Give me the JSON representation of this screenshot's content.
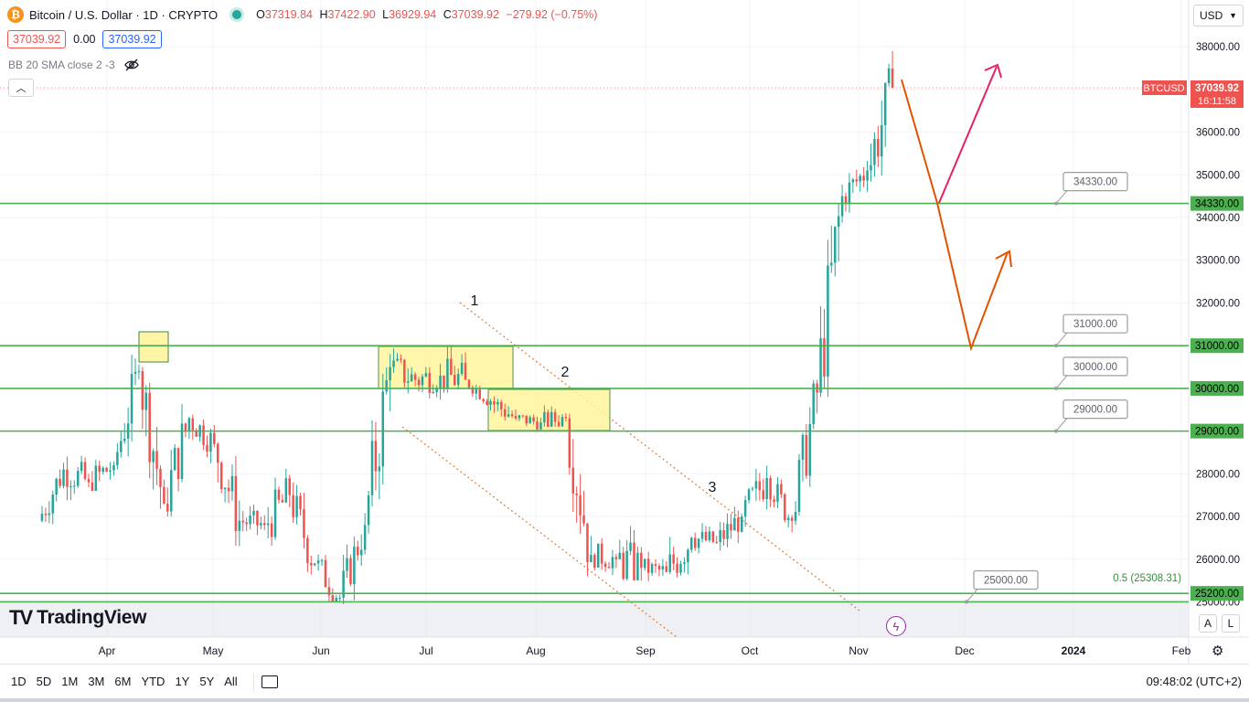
{
  "symbol": {
    "name": "Bitcoin / U.S. Dollar · 1D · CRYPTO",
    "icon": "bitcoin-icon",
    "ohlc": [
      {
        "k": "O",
        "v": "37319.84"
      },
      {
        "k": "H",
        "v": "37422.90"
      },
      {
        "k": "L",
        "v": "36929.94"
      },
      {
        "k": "C",
        "v": "37039.92"
      }
    ],
    "change": "−279.92 (−0.75%)"
  },
  "trade": {
    "sell": "37039.92",
    "spread": "0.00",
    "buy": "37039.92"
  },
  "indicator": {
    "label": "BB 20 SMA close 2 -3"
  },
  "currency": "USD",
  "price_axis": {
    "ticks": [
      "38000.00",
      "36000.00",
      "35000.00",
      "34000.00",
      "33000.00",
      "32000.00",
      "30000.00",
      "28000.00",
      "27000.00",
      "26000.00",
      "25000.00"
    ],
    "current_label": "37039.92",
    "countdown": "16:11:58",
    "symbol_label": "BTCUSD",
    "level_labels": [
      "34330.00",
      "31000.00",
      "30000.00",
      "29000.00",
      "25200.00"
    ]
  },
  "time_axis": [
    "Apr",
    "May",
    "Jun",
    "Jul",
    "Aug",
    "Sep",
    "Oct",
    "Nov",
    "Dec",
    "2024",
    "Feb"
  ],
  "annotations": {
    "level_callouts": [
      "34330.00",
      "31000.00",
      "30000.00",
      "29000.00",
      "25000.00"
    ],
    "wave_labels": [
      "1",
      "2",
      "3"
    ],
    "fib_label": "0.5 (25308.31)"
  },
  "watermark": "TradingView",
  "bottom_bar": {
    "ranges": [
      "1D",
      "5D",
      "1M",
      "3M",
      "6M",
      "YTD",
      "1Y",
      "5Y",
      "All"
    ],
    "clock": "09:48:02 (UTC+2)"
  },
  "buttons": {
    "log": "L",
    "auto": "A"
  },
  "colors": {
    "up": "#26a69a",
    "down": "#ef5350",
    "level": "#4caf50",
    "zone": "#fff59d",
    "channel": "#e07b39",
    "arrow_down": "#e65100",
    "arrow_up": "#e91e63"
  },
  "chart_data": {
    "type": "candlestick",
    "series": [
      {
        "name": "BTCUSD",
        "last": 37039.92
      }
    ],
    "ylim": [
      24650,
      38500
    ],
    "horizontal_levels": [
      34330,
      31000,
      30000,
      29000,
      25200,
      25000
    ],
    "points": [
      {
        "x": "Mar-20",
        "open": 26900,
        "close": 28100,
        "high": 28400,
        "low": 26600
      },
      {
        "x": "Mar-27",
        "open": 28100,
        "close": 27800,
        "high": 28600,
        "low": 26800
      },
      {
        "x": "Apr-03",
        "open": 27800,
        "close": 28200,
        "high": 29200,
        "low": 27600
      },
      {
        "x": "Apr-10",
        "open": 28200,
        "close": 30400,
        "high": 30800,
        "low": 28100
      },
      {
        "x": "Apr-17",
        "open": 30400,
        "close": 27300,
        "high": 30500,
        "low": 26900
      },
      {
        "x": "Apr-24",
        "open": 27300,
        "close": 29300,
        "high": 30000,
        "low": 27000
      },
      {
        "x": "May-01",
        "open": 29300,
        "close": 28700,
        "high": 29800,
        "low": 28200
      },
      {
        "x": "May-08",
        "open": 28700,
        "close": 26900,
        "high": 28900,
        "low": 26000
      },
      {
        "x": "May-15",
        "open": 26900,
        "close": 26800,
        "high": 27600,
        "low": 26300
      },
      {
        "x": "May-22",
        "open": 26800,
        "close": 27500,
        "high": 28500,
        "low": 26100
      },
      {
        "x": "May-29",
        "open": 27500,
        "close": 25900,
        "high": 27800,
        "low": 25400
      },
      {
        "x": "Jun-05",
        "open": 25900,
        "close": 25100,
        "high": 26700,
        "low": 25000
      },
      {
        "x": "Jun-12",
        "open": 25100,
        "close": 26800,
        "high": 27100,
        "low": 24900
      },
      {
        "x": "Jun-19",
        "open": 26800,
        "close": 30500,
        "high": 31000,
        "low": 26600
      },
      {
        "x": "Jun-26",
        "open": 30500,
        "close": 30200,
        "high": 31400,
        "low": 29700
      },
      {
        "x": "Jul-03",
        "open": 30200,
        "close": 30300,
        "high": 31300,
        "low": 29700
      },
      {
        "x": "Jul-10",
        "open": 30300,
        "close": 30200,
        "high": 31800,
        "low": 29900
      },
      {
        "x": "Jul-17",
        "open": 30200,
        "close": 29700,
        "high": 30300,
        "low": 29400
      },
      {
        "x": "Jul-24",
        "open": 29700,
        "close": 29300,
        "high": 30100,
        "low": 28900
      },
      {
        "x": "Aug-01",
        "open": 29300,
        "close": 29200,
        "high": 29700,
        "low": 28900
      },
      {
        "x": "Aug-08",
        "open": 29200,
        "close": 29300,
        "high": 30200,
        "low": 29100
      },
      {
        "x": "Aug-15",
        "open": 29300,
        "close": 26100,
        "high": 29400,
        "low": 25600
      },
      {
        "x": "Aug-22",
        "open": 26100,
        "close": 26000,
        "high": 26700,
        "low": 25400
      },
      {
        "x": "Aug-29",
        "open": 26000,
        "close": 25800,
        "high": 27900,
        "low": 25500
      },
      {
        "x": "Sep-05",
        "open": 25800,
        "close": 25700,
        "high": 26400,
        "low": 25300
      },
      {
        "x": "Sep-12",
        "open": 25700,
        "close": 26500,
        "high": 27400,
        "low": 25100
      },
      {
        "x": "Sep-19",
        "open": 26500,
        "close": 26400,
        "high": 27300,
        "low": 26100
      },
      {
        "x": "Sep-26",
        "open": 26400,
        "close": 27000,
        "high": 27700,
        "low": 26200
      },
      {
        "x": "Oct-03",
        "open": 27000,
        "close": 27900,
        "high": 28600,
        "low": 26600
      },
      {
        "x": "Oct-10",
        "open": 27900,
        "close": 26900,
        "high": 28200,
        "low": 26600
      },
      {
        "x": "Oct-17",
        "open": 26900,
        "close": 29900,
        "high": 30200,
        "low": 26800
      },
      {
        "x": "Oct-24",
        "open": 29900,
        "close": 34500,
        "high": 35000,
        "low": 29800
      },
      {
        "x": "Oct-31",
        "open": 34500,
        "close": 35100,
        "high": 35400,
        "low": 33800
      },
      {
        "x": "Nov-07",
        "open": 35100,
        "close": 37039.92,
        "high": 37900,
        "low": 34500
      }
    ]
  }
}
